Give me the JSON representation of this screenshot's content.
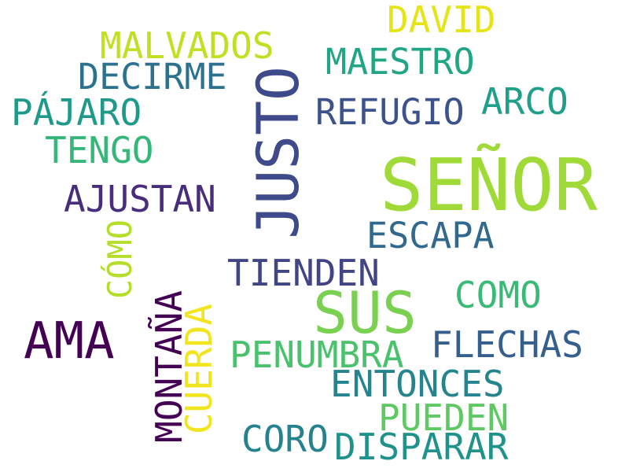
{
  "words": {
    "senor": {
      "text": "SEÑOR",
      "color": "#a0da39"
    },
    "justo": {
      "text": "JUSTO",
      "color": "#3e4a89"
    },
    "sus": {
      "text": "SUS",
      "color": "#7ad151"
    },
    "ama": {
      "text": "AMA",
      "color": "#440154"
    },
    "david": {
      "text": "DAVID",
      "color": "#e5e419"
    },
    "malvados": {
      "text": "MALVADOS",
      "color": "#c2df23"
    },
    "maestro": {
      "text": "MAESTRO",
      "color": "#21a685"
    },
    "decirme": {
      "text": "DECIRME",
      "color": "#2c728e"
    },
    "pajaro": {
      "text": "PÁJARO",
      "color": "#1f9a8a"
    },
    "refugio": {
      "text": "REFUGIO",
      "color": "#3b528b"
    },
    "arco": {
      "text": "ARCO",
      "color": "#1f9e89"
    },
    "tengo": {
      "text": "TENGO",
      "color": "#35b779"
    },
    "ajustan": {
      "text": "AJUSTAN",
      "color": "#472d7b"
    },
    "escapa": {
      "text": "ESCAPA",
      "color": "#31688e"
    },
    "como_acc": {
      "text": "CÓMO",
      "color": "#b5de2b"
    },
    "tienden": {
      "text": "TIENDEN",
      "color": "#414487"
    },
    "como": {
      "text": "COMO",
      "color": "#3aba76"
    },
    "montana": {
      "text": "MONTAÑA",
      "color": "#440154"
    },
    "cuerda": {
      "text": "CUERDA",
      "color": "#f1e51d"
    },
    "penumbra": {
      "text": "PENUMBRA",
      "color": "#4ac16d"
    },
    "flechas": {
      "text": "FLECHAS",
      "color": "#355f8d"
    },
    "entonces": {
      "text": "ENTONCES",
      "color": "#25848e"
    },
    "pueden": {
      "text": "PUEDEN",
      "color": "#5ec962"
    },
    "coro": {
      "text": "CORO",
      "color": "#26828e"
    },
    "disparar": {
      "text": "DISPARAR",
      "color": "#20928c"
    }
  }
}
